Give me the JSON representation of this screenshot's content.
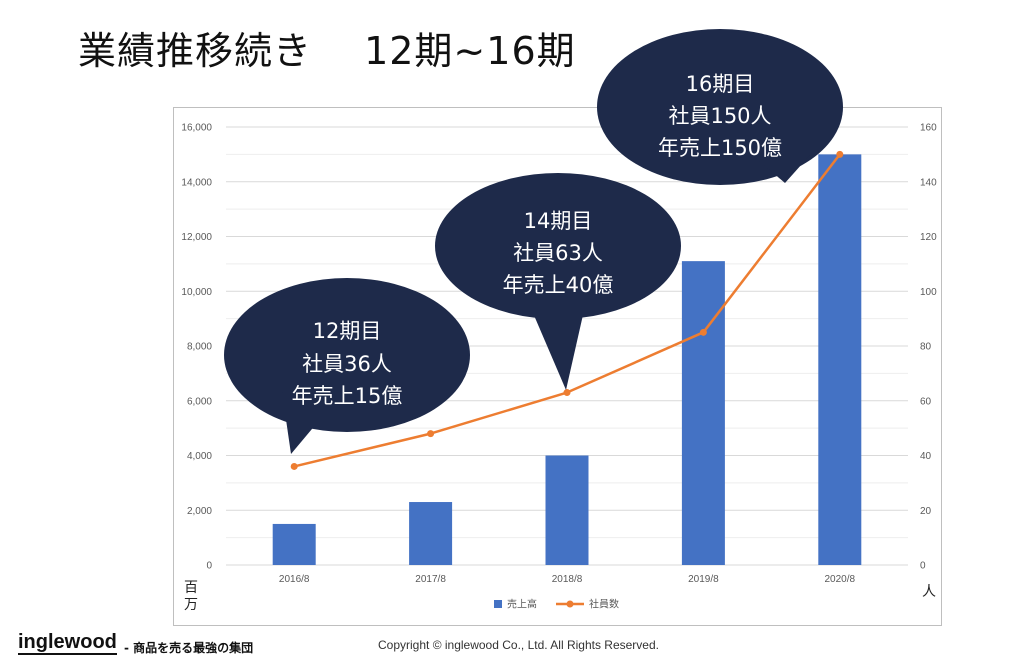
{
  "slide": {
    "title": "業績推移続き　 12期~16期"
  },
  "units": {
    "left": "百万",
    "right": "人"
  },
  "footer": {
    "logo": "inglewood",
    "tagline": "- 商品を売る最強の集団",
    "copyright": "Copyright © inglewood Co., Ltd. All Rights Reserved."
  },
  "callouts": [
    {
      "lines": [
        "12期目",
        "社員36人",
        "年売上15億"
      ],
      "category": "2016/8"
    },
    {
      "lines": [
        "14期目",
        "社員63人",
        "年売上40億"
      ],
      "category": "2018/8"
    },
    {
      "lines": [
        "16期目",
        "社員150人",
        "年売上150億"
      ],
      "category": "2020/8"
    }
  ],
  "colors": {
    "bar": "#4472c4",
    "line": "#ed7d31",
    "callout": "#1e2a4a",
    "grid": "#e3e3e3"
  },
  "chart_data": {
    "type": "bar",
    "categories": [
      "2016/8",
      "2017/8",
      "2018/8",
      "2019/8",
      "2020/8"
    ],
    "series": [
      {
        "name": "売上高",
        "type": "bar",
        "axis": "left",
        "values": [
          1500,
          2300,
          4000,
          11100,
          15000
        ]
      },
      {
        "name": "社員数",
        "type": "line",
        "axis": "right",
        "values": [
          36,
          48,
          63,
          85,
          150
        ]
      }
    ],
    "y_left": {
      "min": 0,
      "max": 16000,
      "ticks": [
        "0",
        "2,000",
        "4,000",
        "6,000",
        "8,000",
        "10,000",
        "12,000",
        "14,000",
        "16,000"
      ]
    },
    "y_right": {
      "min": 0,
      "max": 160,
      "ticks": [
        "0",
        "20",
        "40",
        "60",
        "80",
        "100",
        "120",
        "140",
        "160"
      ]
    },
    "legend": "bottom",
    "grid": true
  }
}
